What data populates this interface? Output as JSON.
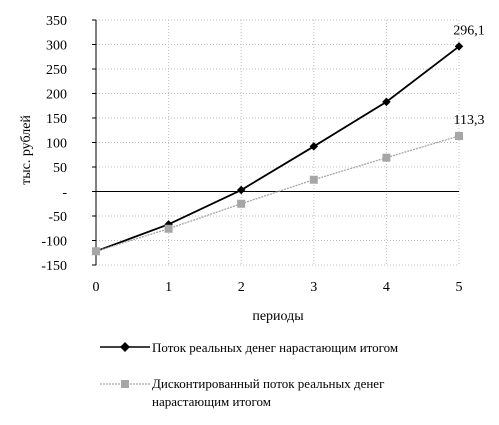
{
  "chart_data": {
    "type": "line",
    "x": [
      0,
      1,
      2,
      3,
      4,
      5
    ],
    "xlabel": "периоды",
    "ylabel": "тыс. рублей",
    "ylim": [
      -150,
      350
    ],
    "yticks": [
      -150,
      -100,
      -50,
      0,
      50,
      100,
      150,
      200,
      250,
      300,
      350
    ],
    "ytick_labels": [
      "-150",
      "-100",
      "-50",
      "-",
      "50",
      "100",
      "150",
      "200",
      "250",
      "300",
      "350"
    ],
    "xtick_labels": [
      "0",
      "1",
      "2",
      "3",
      "4",
      "5"
    ],
    "grid": "dotted",
    "legend_position": "bottom",
    "series": [
      {
        "name": "Поток реальных денег нарастающим итогом",
        "values": [
          -122,
          -67,
          3,
          92,
          183,
          296.1
        ],
        "color": "#000000",
        "marker": "diamond",
        "end_label": "296,1"
      },
      {
        "name": "Дисконтированный поток реальных денег нарастающим итогом",
        "values": [
          -122,
          -76,
          -25,
          24,
          69,
          113.3
        ],
        "color": "#a6a6a6",
        "marker": "square",
        "end_label": "113,3"
      }
    ]
  }
}
